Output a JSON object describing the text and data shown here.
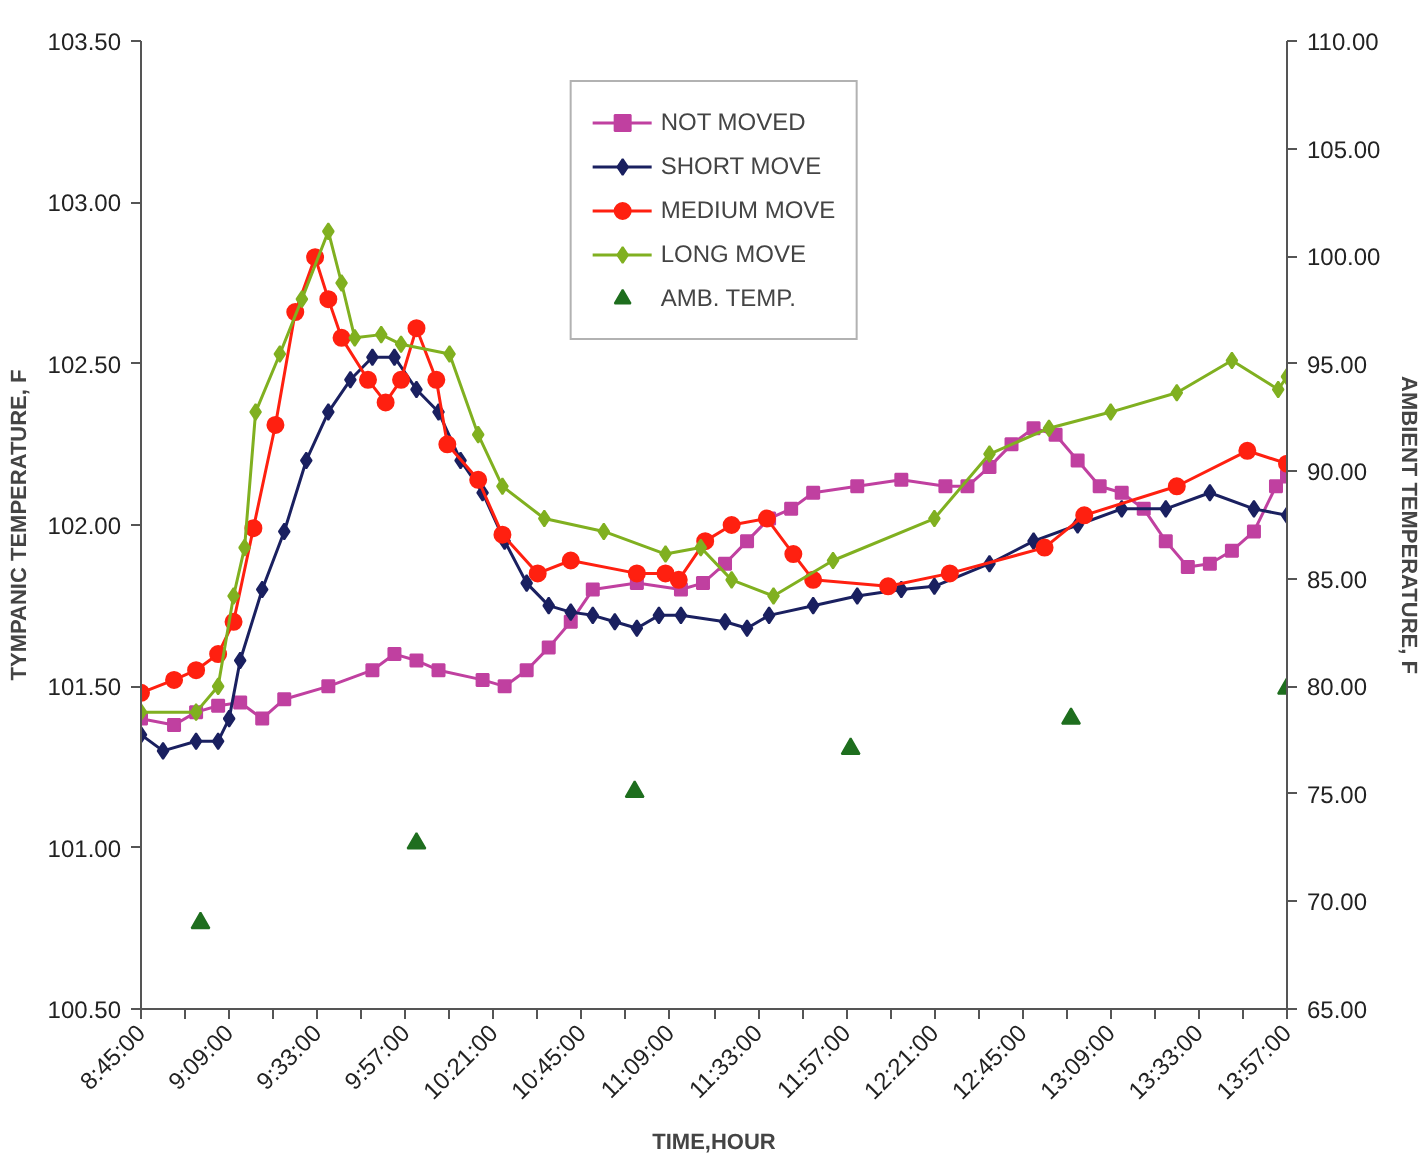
{
  "chart_data": {
    "type": "line",
    "xlabel": "TIME,HOUR",
    "ylabel": "TYMPANIC TEMPERATURE, F",
    "y2label": "AMBIENT TEMPERATURE, F",
    "xlim": [
      8.75,
      13.95
    ],
    "ylim": [
      100.5,
      103.5
    ],
    "y2lim": [
      65,
      110
    ],
    "yticks": [
      {
        "value": 100.5,
        "label": "100.50"
      },
      {
        "value": 101,
        "label": "101.00"
      },
      {
        "value": 101.5,
        "label": "101.50"
      },
      {
        "value": 102,
        "label": "102.00"
      },
      {
        "value": 102.5,
        "label": "102.50"
      },
      {
        "value": 103,
        "label": "103.00"
      },
      {
        "value": 103.5,
        "label": "103.50"
      }
    ],
    "y2ticks": [
      {
        "value": 65,
        "label": "65.00"
      },
      {
        "value": 70,
        "label": "70.00"
      },
      {
        "value": 75,
        "label": "75.00"
      },
      {
        "value": 80,
        "label": "80.00"
      },
      {
        "value": 85,
        "label": "85.00"
      },
      {
        "value": 90,
        "label": "90.00"
      },
      {
        "value": 95,
        "label": "95.00"
      },
      {
        "value": 100,
        "label": "100.00"
      },
      {
        "value": 105,
        "label": "105.00"
      },
      {
        "value": 110,
        "label": "110.00"
      }
    ],
    "xticks": [
      {
        "value": 8.75,
        "label": "8:45:00"
      },
      {
        "value": 8.95,
        "label": null
      },
      {
        "value": 9.15,
        "label": "9:09:00"
      },
      {
        "value": 9.35,
        "label": null
      },
      {
        "value": 9.55,
        "label": "9:33:00"
      },
      {
        "value": 9.75,
        "label": null
      },
      {
        "value": 9.95,
        "label": "9:57:00"
      },
      {
        "value": 10.15,
        "label": null
      },
      {
        "value": 10.35,
        "label": "10:21:00"
      },
      {
        "value": 10.55,
        "label": null
      },
      {
        "value": 10.75,
        "label": "10:45:00"
      },
      {
        "value": 10.95,
        "label": null
      },
      {
        "value": 11.15,
        "label": "11:09:00"
      },
      {
        "value": 11.35,
        "label": null
      },
      {
        "value": 11.55,
        "label": "11:33:00"
      },
      {
        "value": 11.75,
        "label": null
      },
      {
        "value": 11.95,
        "label": "11:57:00"
      },
      {
        "value": 12.15,
        "label": null
      },
      {
        "value": 12.35,
        "label": "12:21:00"
      },
      {
        "value": 12.55,
        "label": null
      },
      {
        "value": 12.75,
        "label": "12:45:00"
      },
      {
        "value": 12.95,
        "label": null
      },
      {
        "value": 13.15,
        "label": "13:09:00"
      },
      {
        "value": 13.35,
        "label": null
      },
      {
        "value": 13.55,
        "label": "13:33:00"
      },
      {
        "value": 13.75,
        "label": null
      },
      {
        "value": 13.95,
        "label": "13:57:00"
      }
    ],
    "grid": false,
    "legend": "top",
    "line_style": "solid",
    "series": [
      {
        "name": "NOT MOVED",
        "color": "#c040a0",
        "marker": "square",
        "x": [
          8.75,
          8.9,
          9.0,
          9.1,
          9.2,
          9.3,
          9.4,
          9.6,
          9.8,
          9.9,
          10.0,
          10.1,
          10.3,
          10.4,
          10.5,
          10.6,
          10.7,
          10.8,
          11.0,
          11.2,
          11.3,
          11.4,
          11.5,
          11.6,
          11.7,
          11.8,
          12.0,
          12.2,
          12.4,
          12.5,
          12.6,
          12.7,
          12.8,
          12.9,
          13.0,
          13.1,
          13.2,
          13.3,
          13.4,
          13.5,
          13.6,
          13.7,
          13.8,
          13.9,
          13.95
        ],
        "values": [
          101.4,
          101.38,
          101.42,
          101.44,
          101.45,
          101.4,
          101.46,
          101.5,
          101.55,
          101.6,
          101.58,
          101.55,
          101.52,
          101.5,
          101.55,
          101.62,
          101.7,
          101.8,
          101.82,
          101.8,
          101.82,
          101.88,
          101.95,
          102.02,
          102.05,
          102.1,
          102.12,
          102.14,
          102.12,
          102.12,
          102.18,
          102.25,
          102.3,
          102.28,
          102.2,
          102.12,
          102.1,
          102.05,
          101.95,
          101.87,
          101.88,
          101.92,
          101.98,
          102.12,
          102.15
        ]
      },
      {
        "name": "SHORT MOVE",
        "color": "#1a2060",
        "marker": "diamond",
        "x": [
          8.75,
          8.85,
          9.0,
          9.1,
          9.15,
          9.2,
          9.3,
          9.4,
          9.5,
          9.6,
          9.7,
          9.8,
          9.9,
          10.0,
          10.1,
          10.2,
          10.3,
          10.4,
          10.5,
          10.6,
          10.7,
          10.8,
          10.9,
          11.0,
          11.1,
          11.2,
          11.4,
          11.5,
          11.6,
          11.8,
          12.0,
          12.2,
          12.35,
          12.6,
          12.8,
          13.0,
          13.2,
          13.4,
          13.6,
          13.8,
          13.95
        ],
        "values": [
          101.35,
          101.3,
          101.33,
          101.33,
          101.4,
          101.58,
          101.8,
          101.98,
          102.2,
          102.35,
          102.45,
          102.52,
          102.52,
          102.42,
          102.35,
          102.2,
          102.1,
          101.95,
          101.82,
          101.75,
          101.73,
          101.72,
          101.7,
          101.68,
          101.72,
          101.72,
          101.7,
          101.68,
          101.72,
          101.75,
          101.78,
          101.8,
          101.81,
          101.88,
          101.95,
          102.0,
          102.05,
          102.05,
          102.1,
          102.05,
          102.03
        ]
      },
      {
        "name": "MEDIUM MOVE",
        "color": "#ff2010",
        "marker": "circle",
        "x": [
          8.75,
          8.9,
          9.0,
          9.1,
          9.17,
          9.26,
          9.36,
          9.45,
          9.54,
          9.6,
          9.66,
          9.78,
          9.86,
          9.93,
          10.0,
          10.09,
          10.14,
          10.28,
          10.39,
          10.55,
          10.7,
          11.0,
          11.13,
          11.19,
          11.31,
          11.43,
          11.59,
          11.71,
          11.8,
          12.14,
          12.42,
          12.85,
          13.03,
          13.45,
          13.77,
          13.95
        ],
        "values": [
          101.48,
          101.52,
          101.55,
          101.6,
          101.7,
          101.99,
          102.31,
          102.66,
          102.83,
          102.7,
          102.58,
          102.45,
          102.38,
          102.45,
          102.61,
          102.45,
          102.25,
          102.14,
          101.97,
          101.85,
          101.89,
          101.85,
          101.85,
          101.83,
          101.95,
          102.0,
          102.02,
          101.91,
          101.83,
          101.81,
          101.85,
          101.93,
          102.03,
          102.12,
          102.23,
          102.19
        ]
      },
      {
        "name": "LONG MOVE",
        "color": "#80b020",
        "marker": "diamond",
        "x": [
          8.75,
          9.0,
          9.1,
          9.17,
          9.22,
          9.27,
          9.38,
          9.48,
          9.6,
          9.66,
          9.72,
          9.84,
          9.93,
          10.15,
          10.28,
          10.39,
          10.58,
          10.85,
          11.13,
          11.29,
          11.43,
          11.62,
          11.89,
          12.35,
          12.6,
          12.87,
          13.15,
          13.45,
          13.7,
          13.91,
          13.95
        ],
        "values": [
          101.42,
          101.42,
          101.5,
          101.78,
          101.93,
          102.35,
          102.53,
          102.7,
          102.91,
          102.75,
          102.58,
          102.59,
          102.56,
          102.53,
          102.28,
          102.12,
          102.02,
          101.98,
          101.91,
          101.93,
          101.83,
          101.78,
          101.89,
          102.02,
          102.22,
          102.3,
          102.35,
          102.41,
          102.51,
          102.42,
          102.46
        ]
      },
      {
        "name": "AMB. TEMP.",
        "color": "#1e6e1e",
        "marker": "triangle",
        "type": "scatter",
        "axis": "y2",
        "x": [
          9.02,
          10.0,
          10.99,
          11.97,
          12.97,
          13.95
        ],
        "values": [
          69.0,
          72.7,
          75.1,
          77.1,
          78.5,
          79.9
        ]
      }
    ]
  }
}
